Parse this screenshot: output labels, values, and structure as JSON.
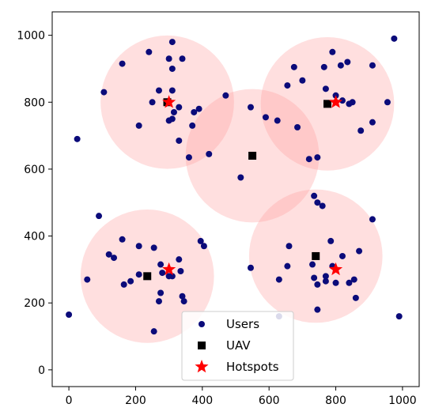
{
  "chart_data": {
    "type": "scatter",
    "title": "",
    "xlabel": "",
    "ylabel": "",
    "xlim": [
      -50,
      1050
    ],
    "ylim": [
      -50,
      1070
    ],
    "x_ticks": [
      0,
      200,
      400,
      600,
      800,
      1000
    ],
    "y_ticks": [
      0,
      200,
      400,
      600,
      800,
      1000
    ],
    "x_tick_labels": [
      "0",
      "200",
      "400",
      "600",
      "800",
      "1000"
    ],
    "y_tick_labels": [
      "0",
      "200",
      "400",
      "600",
      "800",
      "1000"
    ],
    "grid": false,
    "legend_position": "lower center",
    "colors": {
      "users": "#0b0b7a",
      "uav": "#000000",
      "hotspots": "#ff0000",
      "coverage": "#ff9c9c"
    },
    "coverage_radius": 200,
    "series": [
      {
        "name": "Users",
        "marker": "circle",
        "points": [
          [
            310,
            980
          ],
          [
            240,
            950
          ],
          [
            300,
            930
          ],
          [
            340,
            930
          ],
          [
            310,
            900
          ],
          [
            160,
            915
          ],
          [
            105,
            830
          ],
          [
            270,
            835
          ],
          [
            310,
            835
          ],
          [
            295,
            800
          ],
          [
            250,
            800
          ],
          [
            330,
            785
          ],
          [
            390,
            780
          ],
          [
            470,
            820
          ],
          [
            315,
            770
          ],
          [
            310,
            750
          ],
          [
            375,
            770
          ],
          [
            300,
            745
          ],
          [
            210,
            730
          ],
          [
            370,
            730
          ],
          [
            330,
            685
          ],
          [
            420,
            645
          ],
          [
            360,
            635
          ],
          [
            25,
            690
          ],
          [
            545,
            785
          ],
          [
            590,
            755
          ],
          [
            625,
            745
          ],
          [
            685,
            725
          ],
          [
            720,
            630
          ],
          [
            745,
            635
          ],
          [
            655,
            850
          ],
          [
            700,
            865
          ],
          [
            675,
            905
          ],
          [
            765,
            905
          ],
          [
            790,
            950
          ],
          [
            815,
            910
          ],
          [
            835,
            920
          ],
          [
            910,
            910
          ],
          [
            770,
            840
          ],
          [
            800,
            820
          ],
          [
            820,
            805
          ],
          [
            850,
            800
          ],
          [
            840,
            795
          ],
          [
            955,
            800
          ],
          [
            910,
            740
          ],
          [
            875,
            715
          ],
          [
            515,
            575
          ],
          [
            975,
            990
          ],
          [
            90,
            460
          ],
          [
            55,
            270
          ],
          [
            0,
            165
          ],
          [
            120,
            345
          ],
          [
            135,
            335
          ],
          [
            160,
            390
          ],
          [
            165,
            255
          ],
          [
            185,
            265
          ],
          [
            210,
            285
          ],
          [
            210,
            370
          ],
          [
            255,
            365
          ],
          [
            275,
            315
          ],
          [
            280,
            290
          ],
          [
            275,
            230
          ],
          [
            270,
            205
          ],
          [
            330,
            330
          ],
          [
            335,
            295
          ],
          [
            340,
            220
          ],
          [
            345,
            205
          ],
          [
            300,
            280
          ],
          [
            310,
            280
          ],
          [
            395,
            385
          ],
          [
            405,
            370
          ],
          [
            255,
            115
          ],
          [
            545,
            305
          ],
          [
            630,
            270
          ],
          [
            655,
            310
          ],
          [
            660,
            370
          ],
          [
            735,
            520
          ],
          [
            745,
            500
          ],
          [
            760,
            490
          ],
          [
            730,
            315
          ],
          [
            735,
            275
          ],
          [
            745,
            255
          ],
          [
            770,
            265
          ],
          [
            770,
            280
          ],
          [
            785,
            385
          ],
          [
            790,
            310
          ],
          [
            800,
            260
          ],
          [
            820,
            340
          ],
          [
            840,
            260
          ],
          [
            855,
            270
          ],
          [
            860,
            215
          ],
          [
            870,
            355
          ],
          [
            910,
            450
          ],
          [
            745,
            180
          ],
          [
            630,
            160
          ],
          [
            990,
            160
          ],
          [
            740,
            340
          ]
        ]
      },
      {
        "name": "UAV",
        "marker": "square",
        "points": [
          [
            295,
            800
          ],
          [
            550,
            640
          ],
          [
            775,
            795
          ],
          [
            235,
            280
          ],
          [
            740,
            340
          ]
        ]
      },
      {
        "name": "Hotspots",
        "marker": "star",
        "points": [
          [
            300,
            800
          ],
          [
            800,
            800
          ],
          [
            300,
            300
          ],
          [
            800,
            300
          ]
        ]
      }
    ]
  }
}
